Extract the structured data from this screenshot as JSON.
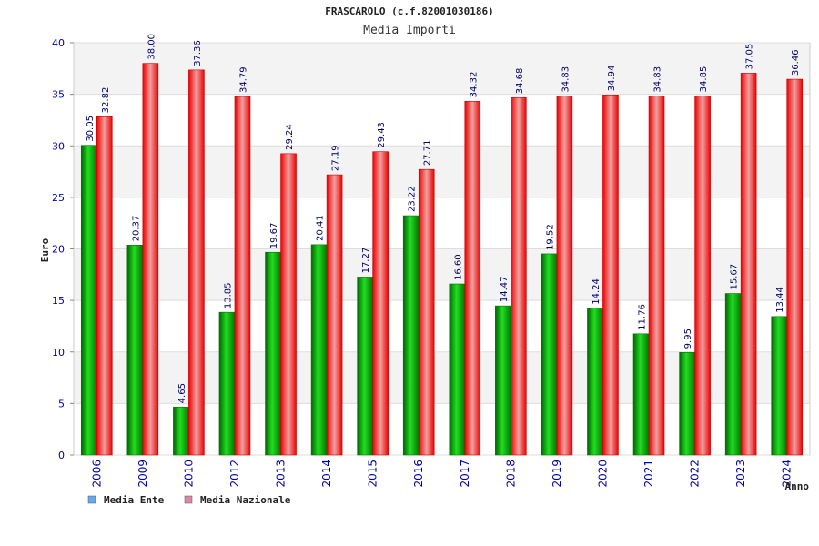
{
  "chart_data": {
    "type": "bar",
    "title": "FRASCAROLO (c.f.82001030186)",
    "subtitle": "Media Importi",
    "xlabel": "Anno",
    "ylabel": "Euro",
    "ylim": [
      0,
      40
    ],
    "yticks": [
      0,
      5,
      10,
      15,
      20,
      25,
      30,
      35,
      40
    ],
    "categories": [
      "2006",
      "2009",
      "2010",
      "2012",
      "2013",
      "2014",
      "2015",
      "2016",
      "2017",
      "2018",
      "2019",
      "2020",
      "2021",
      "2022",
      "2023",
      "2024"
    ],
    "series": [
      {
        "name": "Media Ente",
        "color": "#00cc00",
        "legend_color": "#66aaee",
        "values": [
          30.05,
          20.37,
          4.65,
          13.85,
          19.67,
          20.41,
          17.27,
          23.22,
          16.6,
          14.47,
          19.52,
          14.24,
          11.76,
          9.95,
          15.67,
          13.44
        ],
        "labels": [
          "30.05",
          "20.37",
          "4.65",
          "13.85",
          "19.67",
          "20.41",
          "17.27",
          "23.22",
          "16.60",
          "14.47",
          "19.52",
          "14.24",
          "11.76",
          "9.95",
          "15.67",
          "13.44"
        ]
      },
      {
        "name": "Media Nazionale",
        "color": "#ee1111",
        "legend_color": "#dd88aa",
        "values": [
          32.82,
          38.0,
          37.36,
          34.79,
          29.24,
          27.19,
          29.43,
          27.71,
          34.32,
          34.68,
          34.83,
          34.94,
          34.83,
          34.85,
          37.05,
          36.46
        ],
        "labels": [
          "32.82",
          "38.00",
          "37.36",
          "34.79",
          "29.24",
          "27.19",
          "29.43",
          "27.71",
          "34.32",
          "34.68",
          "34.83",
          "34.94",
          "34.83",
          "34.85",
          "37.05",
          "36.46"
        ]
      }
    ],
    "grid": true,
    "legend_position": "bottom-left"
  }
}
